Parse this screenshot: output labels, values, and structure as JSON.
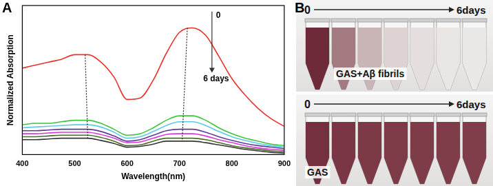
{
  "chart_data": {
    "type": "line",
    "panel_label": "A",
    "x_label": "Wavelength(nm)",
    "y_label": "Normalized Absorption",
    "x": [
      400,
      425,
      450,
      475,
      500,
      525,
      550,
      575,
      600,
      625,
      650,
      675,
      700,
      725,
      750,
      775,
      800,
      825,
      850,
      875,
      900
    ],
    "series": [
      {
        "color": "#e8312a",
        "values": [
          0.58,
          0.6,
          0.62,
          0.64,
          0.67,
          0.67,
          0.62,
          0.52,
          0.37,
          0.38,
          0.5,
          0.68,
          0.82,
          0.85,
          0.8,
          0.66,
          0.51,
          0.4,
          0.31,
          0.24,
          0.19
        ]
      },
      {
        "color": "#3cc43c",
        "values": [
          0.2,
          0.21,
          0.21,
          0.22,
          0.23,
          0.23,
          0.21,
          0.17,
          0.13,
          0.14,
          0.18,
          0.23,
          0.26,
          0.26,
          0.23,
          0.18,
          0.14,
          0.11,
          0.09,
          0.07,
          0.06
        ]
      },
      {
        "color": "#5bc8e8",
        "values": [
          0.18,
          0.185,
          0.19,
          0.195,
          0.2,
          0.2,
          0.185,
          0.15,
          0.11,
          0.12,
          0.155,
          0.195,
          0.22,
          0.22,
          0.195,
          0.155,
          0.12,
          0.095,
          0.075,
          0.06,
          0.05
        ]
      },
      {
        "color": "#5a3a9a",
        "values": [
          0.16,
          0.16,
          0.165,
          0.17,
          0.17,
          0.17,
          0.155,
          0.125,
          0.09,
          0.1,
          0.13,
          0.16,
          0.17,
          0.17,
          0.15,
          0.12,
          0.095,
          0.075,
          0.06,
          0.05,
          0.04
        ]
      },
      {
        "color": "#d63ad6",
        "values": [
          0.14,
          0.14,
          0.145,
          0.15,
          0.15,
          0.15,
          0.135,
          0.11,
          0.08,
          0.085,
          0.11,
          0.135,
          0.14,
          0.14,
          0.125,
          0.1,
          0.08,
          0.06,
          0.045,
          0.035,
          0.03
        ]
      },
      {
        "color": "#4a6a2a",
        "values": [
          0.12,
          0.12,
          0.125,
          0.13,
          0.13,
          0.13,
          0.115,
          0.09,
          0.06,
          0.065,
          0.09,
          0.11,
          0.11,
          0.11,
          0.1,
          0.08,
          0.06,
          0.045,
          0.035,
          0.025,
          0.02
        ]
      },
      {
        "color": "#333333",
        "values": [
          0.1,
          0.1,
          0.105,
          0.11,
          0.11,
          0.11,
          0.095,
          0.075,
          0.05,
          0.055,
          0.07,
          0.09,
          0.09,
          0.09,
          0.08,
          0.065,
          0.05,
          0.035,
          0.025,
          0.015,
          0.01
        ]
      }
    ],
    "xlim": [
      400,
      900
    ],
    "xticks": [
      400,
      500,
      600,
      700,
      800,
      900
    ],
    "ylim": [
      0,
      1
    ],
    "tick_labels": "x",
    "grid": false,
    "peak_guides": [
      {
        "x1": 520,
        "y1": 0.67,
        "x2": 525,
        "y2": 0.1
      },
      {
        "x1": 715,
        "y1": 0.85,
        "x2": 705,
        "y2": 0.09
      }
    ],
    "arrow": {
      "start_label": "0",
      "end_label": "6 days",
      "x": 762,
      "y_start": 0.96,
      "y_end": 0.55
    }
  },
  "image_panel": {
    "panel_label": "B",
    "rows": [
      {
        "start_label": "0",
        "end_label": "6days",
        "label": "GAS+Aβ fibrils",
        "colors": [
          "#6e2a38",
          "#a37a80",
          "#c9b4b6",
          "#ddd3d3",
          "#e4dfde",
          "#e8e5e3",
          "#eae8e6"
        ]
      },
      {
        "start_label": "0",
        "end_label": "6days",
        "label": "GAS",
        "colors": [
          "#74303e",
          "#7a3644",
          "#7c3946",
          "#7d3a47",
          "#7e3b48",
          "#7f3c49",
          "#803d4a"
        ]
      }
    ]
  }
}
